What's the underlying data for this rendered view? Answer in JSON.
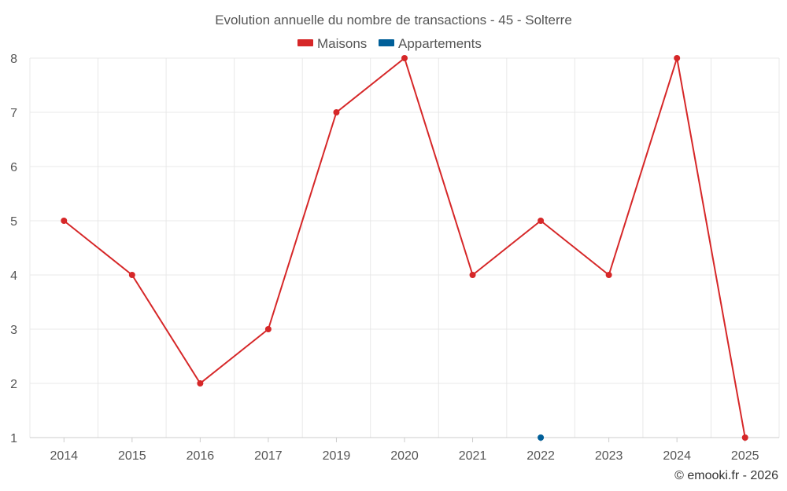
{
  "chart_data": {
    "type": "line",
    "title": "Evolution annuelle du nombre de transactions - 45 - Solterre",
    "categories": [
      "2014",
      "2015",
      "2016",
      "2017",
      "2019",
      "2020",
      "2021",
      "2022",
      "2023",
      "2024",
      "2025"
    ],
    "series": [
      {
        "name": "Maisons",
        "color": "#d62728",
        "values": [
          5,
          4,
          2,
          3,
          7,
          8,
          4,
          5,
          4,
          8,
          1
        ]
      },
      {
        "name": "Appartements",
        "color": "#005f99",
        "values": [
          null,
          null,
          null,
          null,
          null,
          null,
          null,
          1,
          null,
          null,
          null
        ]
      }
    ],
    "y_ticks": [
      1,
      2,
      3,
      4,
      5,
      6,
      7,
      8
    ],
    "ylim": [
      1,
      8
    ],
    "xlabel": "",
    "ylabel": "",
    "grid": true,
    "legend_position": "top-center"
  },
  "credit": "© emooki.fr - 2026"
}
